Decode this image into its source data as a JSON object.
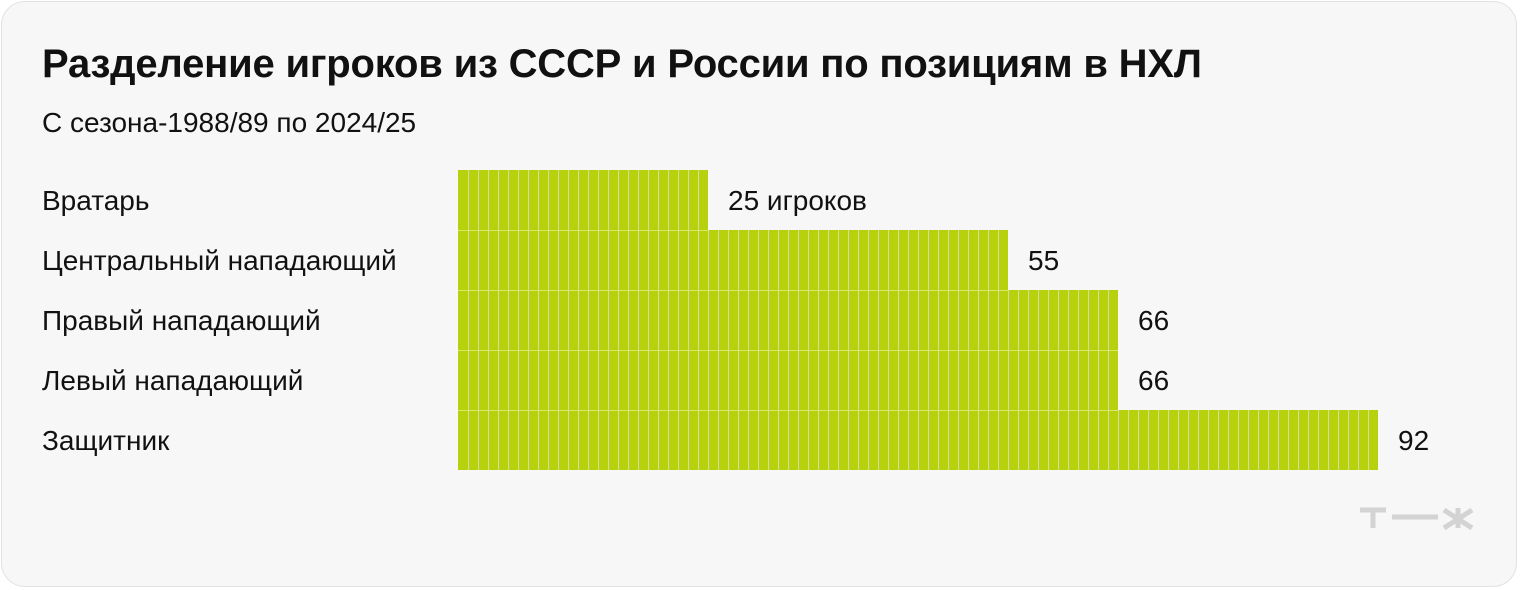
{
  "chart_data": {
    "type": "bar",
    "orientation": "horizontal",
    "title": "Разделение игроков из СССР и России по позициям в НХЛ",
    "subtitle": "С сезона-1988/89 по 2024/25",
    "categories": [
      "Вратарь",
      "Центральный нападающий",
      "Правый нападающий",
      "Левый нападающий",
      "Защитник"
    ],
    "values": [
      25,
      55,
      66,
      66,
      92
    ],
    "value_labels": [
      "25 игроков",
      "55",
      "66",
      "66",
      "92"
    ],
    "bar_color": "#b7d20c",
    "grid_line_color": "#d6e86a",
    "grid": false,
    "legend": "none"
  },
  "brand": {
    "logo_text": "т—ж",
    "logo_color": "#d3d3d3"
  }
}
